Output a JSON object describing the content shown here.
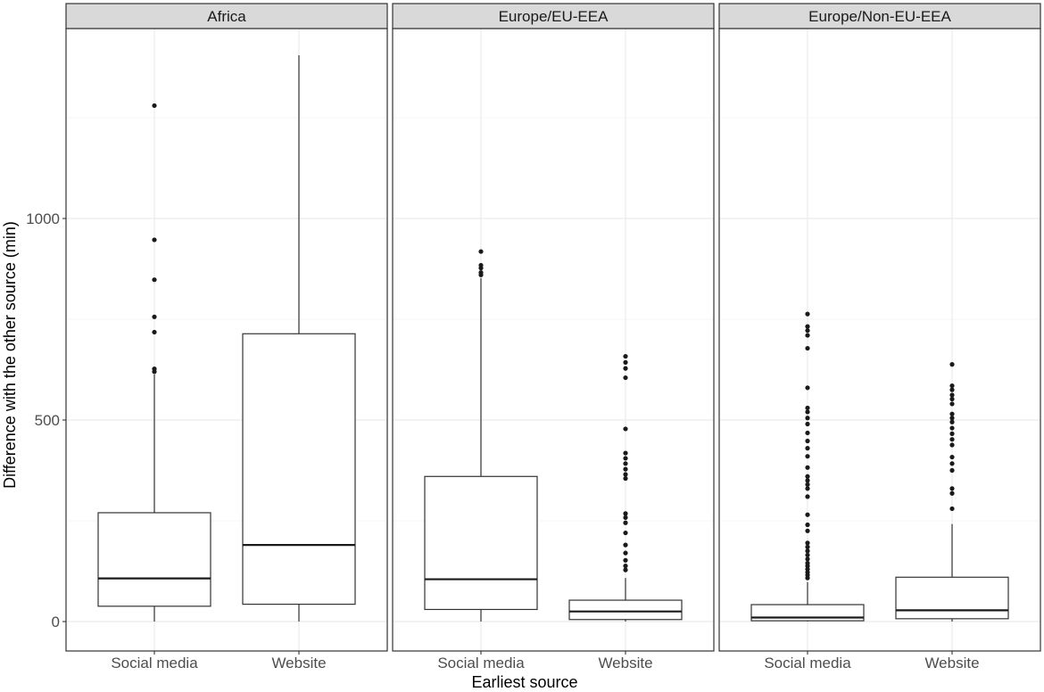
{
  "chart_data": {
    "type": "boxplot",
    "facets": [
      "Africa",
      "Europe/EU-EEA",
      "Europe/Non-EU-EEA"
    ],
    "categories": [
      "Social media",
      "Website"
    ],
    "xlabel": "Earliest source",
    "ylabel": "Difference with the other source (min)",
    "yticks": [
      0,
      500,
      1000
    ],
    "ylim": [
      -75,
      1475
    ],
    "grid": true,
    "boxes": [
      {
        "facet": "Africa",
        "category": "Social media",
        "min": 0,
        "q1": 38,
        "median": 107,
        "q3": 270,
        "max": 613,
        "outliers": [
          620,
          627,
          718,
          756,
          848,
          947,
          1280
        ]
      },
      {
        "facet": "Africa",
        "category": "Website",
        "min": 0,
        "q1": 43,
        "median": 190,
        "q3": 714,
        "max": 1405,
        "outliers": []
      },
      {
        "facet": "Europe/EU-EEA",
        "category": "Social media",
        "min": 0,
        "q1": 30,
        "median": 105,
        "q3": 360,
        "max": 852,
        "outliers": [
          860,
          866,
          877,
          884,
          918
        ]
      },
      {
        "facet": "Europe/EU-EEA",
        "category": "Website",
        "min": 0,
        "q1": 5,
        "median": 25,
        "q3": 53,
        "max": 108,
        "outliers": [
          128,
          138,
          152,
          170,
          190,
          220,
          245,
          258,
          268,
          355,
          365,
          378,
          392,
          405,
          418,
          478,
          605,
          628,
          643,
          658
        ]
      },
      {
        "facet": "Europe/Non-EU-EEA",
        "category": "Social media",
        "min": 0,
        "q1": 2,
        "median": 10,
        "q3": 42,
        "max": 98,
        "outliers": [
          108,
          115,
          122,
          130,
          138,
          145,
          155,
          165,
          175,
          185,
          195,
          225,
          240,
          265,
          310,
          330,
          340,
          350,
          360,
          382,
          410,
          430,
          448,
          468,
          490,
          505,
          520,
          530,
          580,
          678,
          710,
          722,
          732,
          763
        ]
      },
      {
        "facet": "Europe/Non-EU-EEA",
        "category": "Website",
        "min": 0,
        "q1": 7,
        "median": 28,
        "q3": 110,
        "max": 242,
        "outliers": [
          280,
          318,
          330,
          375,
          392,
          408,
          438,
          452,
          466,
          480,
          495,
          505,
          515,
          540,
          552,
          562,
          575,
          585,
          638
        ]
      }
    ]
  }
}
